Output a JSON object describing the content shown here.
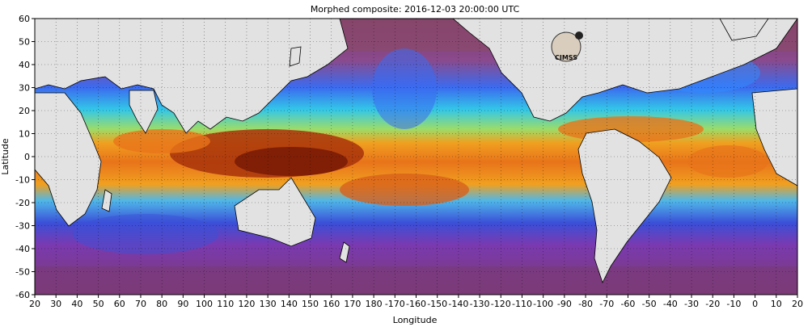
{
  "title": "Morphed composite: 2016-12-03 20:00:00 UTC",
  "logo_text": "CIMSS",
  "axes": {
    "xlabel": "Longitude",
    "ylabel": "Latitude",
    "x_ticks": [
      "20",
      "30",
      "40",
      "50",
      "60",
      "70",
      "80",
      "90",
      "100",
      "110",
      "120",
      "130",
      "140",
      "150",
      "160",
      "170",
      "180",
      "-170",
      "-160",
      "-150",
      "-140",
      "-130",
      "-120",
      "-110",
      "-100",
      "-90",
      "-80",
      "-70",
      "-60",
      "-50",
      "-40",
      "-30",
      "-20",
      "-10",
      "0",
      "10",
      "20"
    ],
    "y_ticks": [
      "60",
      "50",
      "40",
      "30",
      "20",
      "10",
      "0",
      "-10",
      "-20",
      "-30",
      "-40",
      "-50",
      "-60"
    ]
  },
  "colors": {
    "land": "#e2e2e2",
    "dry": "#7d3a6e",
    "moist": "#2f8cff",
    "wet": "#e8741a",
    "very_wet": "#7a1c05"
  }
}
